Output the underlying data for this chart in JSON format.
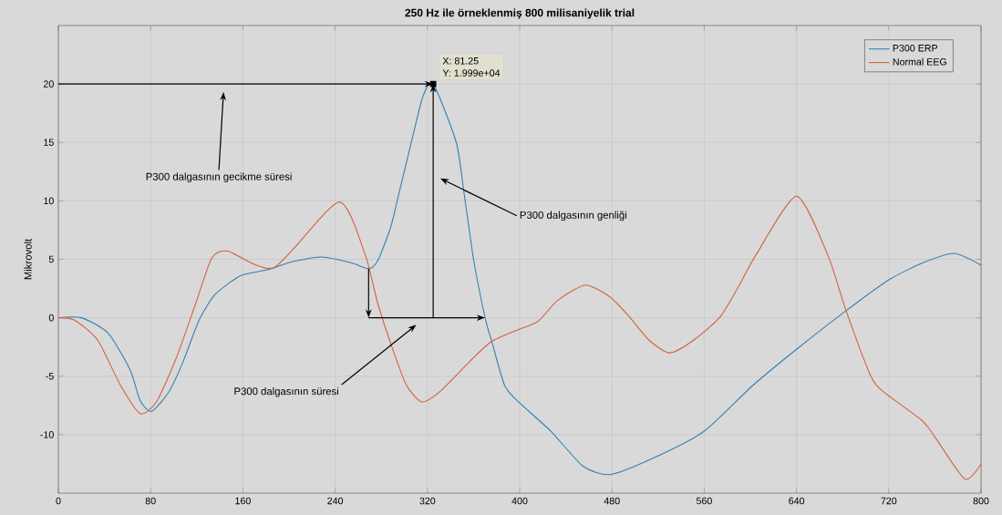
{
  "chart_data": {
    "type": "line",
    "title": "250 Hz ile örneklenmiş 800 milisaniyelik trial",
    "ylabel": "Mikrovolt",
    "xlim": [
      0,
      800
    ],
    "xticks": [
      0,
      80,
      160,
      240,
      320,
      400,
      480,
      560,
      640,
      720,
      800
    ],
    "ylim": [
      -15,
      25
    ],
    "yticks": [
      -10,
      -5,
      0,
      5,
      10,
      15,
      20
    ],
    "grid": true,
    "legend": "top right",
    "marker": "none",
    "line_style": "solid",
    "series": [
      {
        "name": "P300 ERP",
        "color": "#2f7fb3",
        "x": [
          0,
          20,
          43,
          62,
          71,
          81,
          96,
          108,
          122,
          136,
          158,
          181,
          203,
          229,
          254,
          269,
          277,
          288,
          295,
          306,
          316,
          325,
          345,
          352,
          360,
          370,
          376,
          387,
          399,
          427,
          455,
          479,
          518,
          560,
          602,
          640,
          683,
          721,
          752,
          777,
          800
        ],
        "values": [
          0,
          0,
          -1.3,
          -4.4,
          -7.1,
          -8.0,
          -6.3,
          -3.8,
          -0.2,
          2.0,
          3.6,
          4.1,
          4.8,
          5.2,
          4.7,
          4.2,
          4.9,
          7.7,
          10.5,
          15,
          18.9,
          20,
          15,
          10.5,
          5,
          0,
          -2.1,
          -5.8,
          -7.2,
          -9.7,
          -12.7,
          -13.4,
          -11.9,
          -9.7,
          -5.8,
          -2.7,
          0.6,
          3.3,
          4.8,
          5.5,
          4.5
        ]
      },
      {
        "name": "Normal EEG",
        "color": "#d2603a",
        "x": [
          0,
          14,
          34,
          54,
          71,
          85,
          102,
          119,
          133,
          147,
          187,
          243,
          266,
          277,
          291,
          302,
          315,
          331,
          359,
          376,
          399,
          416,
          433,
          457,
          478,
          495,
          512,
          530,
          551,
          574,
          591,
          605,
          640,
          667,
          683,
          704,
          715,
          749,
          760,
          786,
          800
        ],
        "values": [
          0,
          -0.2,
          -1.9,
          -5.8,
          -8.2,
          -7.2,
          -3.5,
          1.2,
          5.1,
          5.7,
          4.3,
          9.9,
          5.4,
          1.2,
          -3.0,
          -5.8,
          -7.2,
          -6.3,
          -3.5,
          -2.0,
          -1.0,
          -0.3,
          1.5,
          2.8,
          1.8,
          0.1,
          -1.9,
          -3.0,
          -1.9,
          0.1,
          2.9,
          5.4,
          10.4,
          5.4,
          0.6,
          -4.9,
          -6.3,
          -8.8,
          -10.2,
          -13.8,
          -12.5
        ]
      }
    ],
    "annotations": [
      {
        "text": "X: 81.25",
        "x": 325,
        "y": 20
      },
      {
        "text": "Y: 1.999e+04",
        "x": 325,
        "y": 20
      },
      "P300 dalgasının gecikme süresi",
      "P300 dalgasının genliği",
      "P300 dalgasının süresi"
    ]
  }
}
